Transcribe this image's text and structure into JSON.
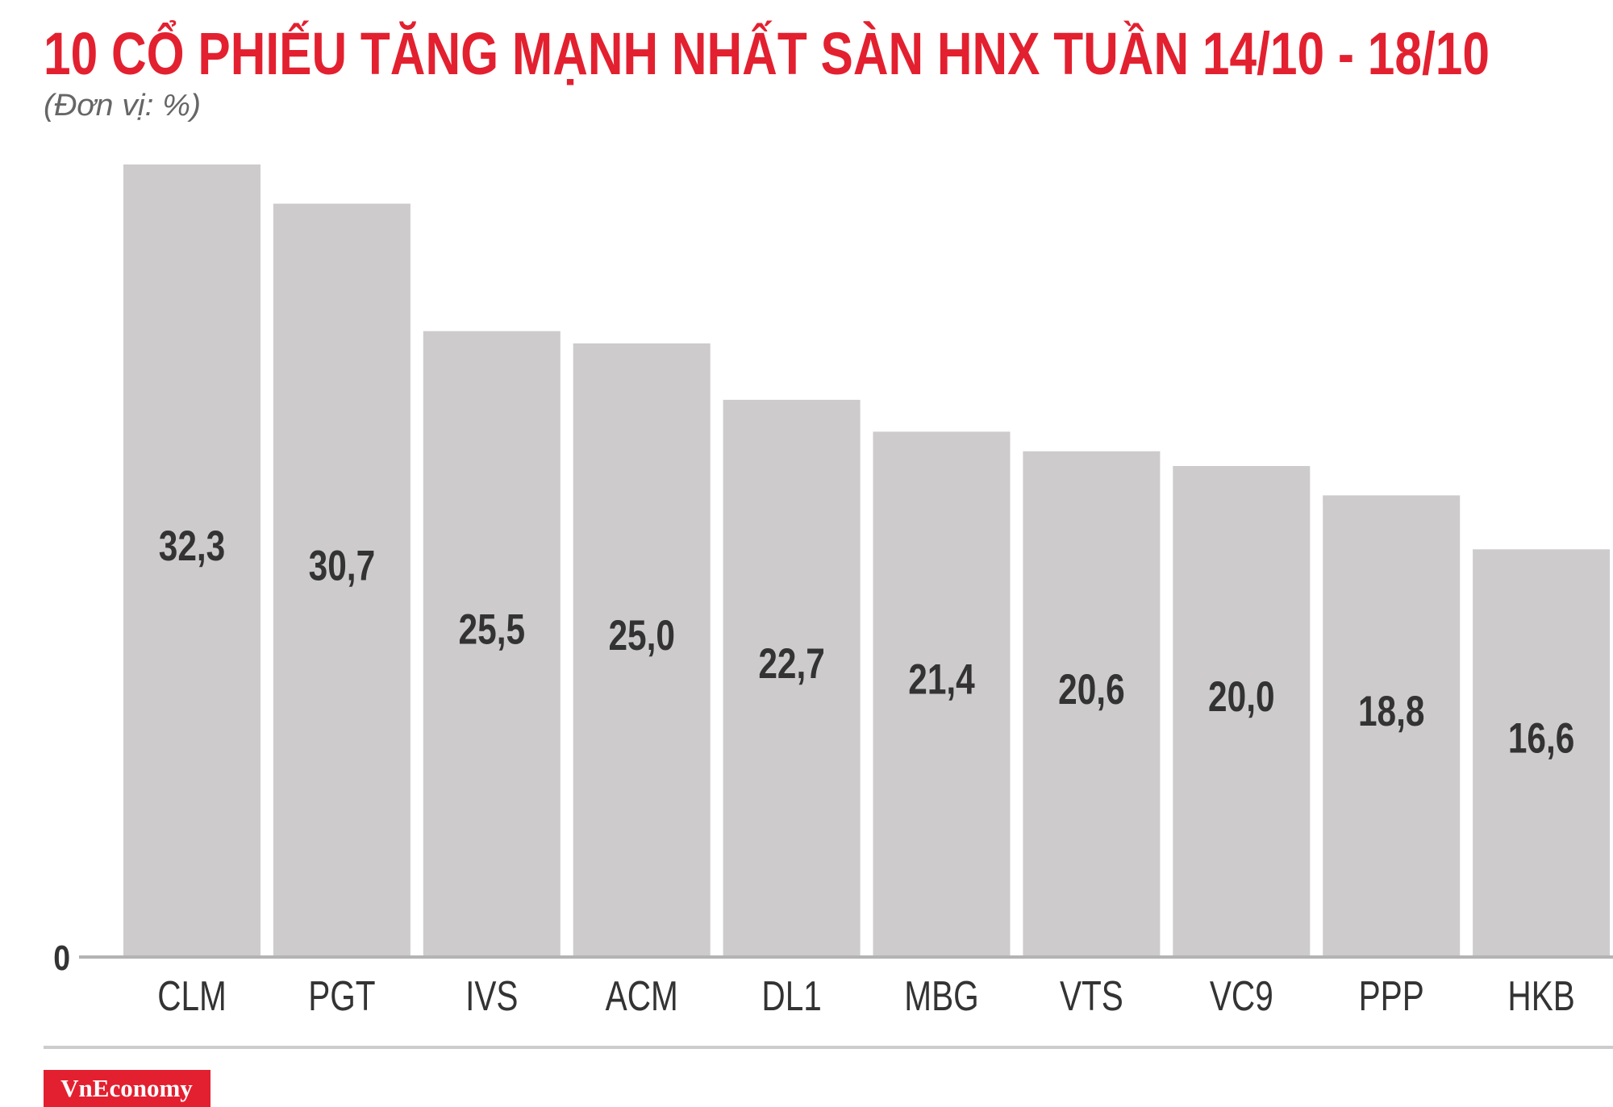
{
  "chart_data": {
    "type": "bar",
    "title": "10 CỔ PHIẾU TĂNG MẠNH NHẤT SÀN HNX TUẦN 14/10 - 18/10",
    "subtitle": "(Đơn vị: %)",
    "categories": [
      "CLM",
      "PGT",
      "IVS",
      "ACM",
      "DL1",
      "MBG",
      "VTS",
      "VC9",
      "PPP",
      "HKB"
    ],
    "values": [
      32.3,
      30.7,
      25.5,
      25.0,
      22.7,
      21.4,
      20.6,
      20.0,
      18.8,
      16.6
    ],
    "value_labels": [
      "32,3",
      "30,7",
      "25,5",
      "25,0",
      "22,7",
      "21,4",
      "20,6",
      "20,0",
      "18,8",
      "16,6"
    ],
    "ylim": [
      0,
      32.3
    ],
    "yticks": [
      0
    ],
    "ytick_labels": [
      "0"
    ],
    "grid": false,
    "legend": "none"
  },
  "brand": {
    "logo_text": "VnEconomy"
  },
  "colors": {
    "title": "#e3202f",
    "subtitle": "#666666",
    "bar": "#cdcbcc",
    "value_label": "#333333",
    "category_label": "#333333",
    "axis_line": "#b3b3b3",
    "divider": "#cccccc",
    "logo_background": "#e3202f",
    "logo_text": "#ffffff"
  }
}
